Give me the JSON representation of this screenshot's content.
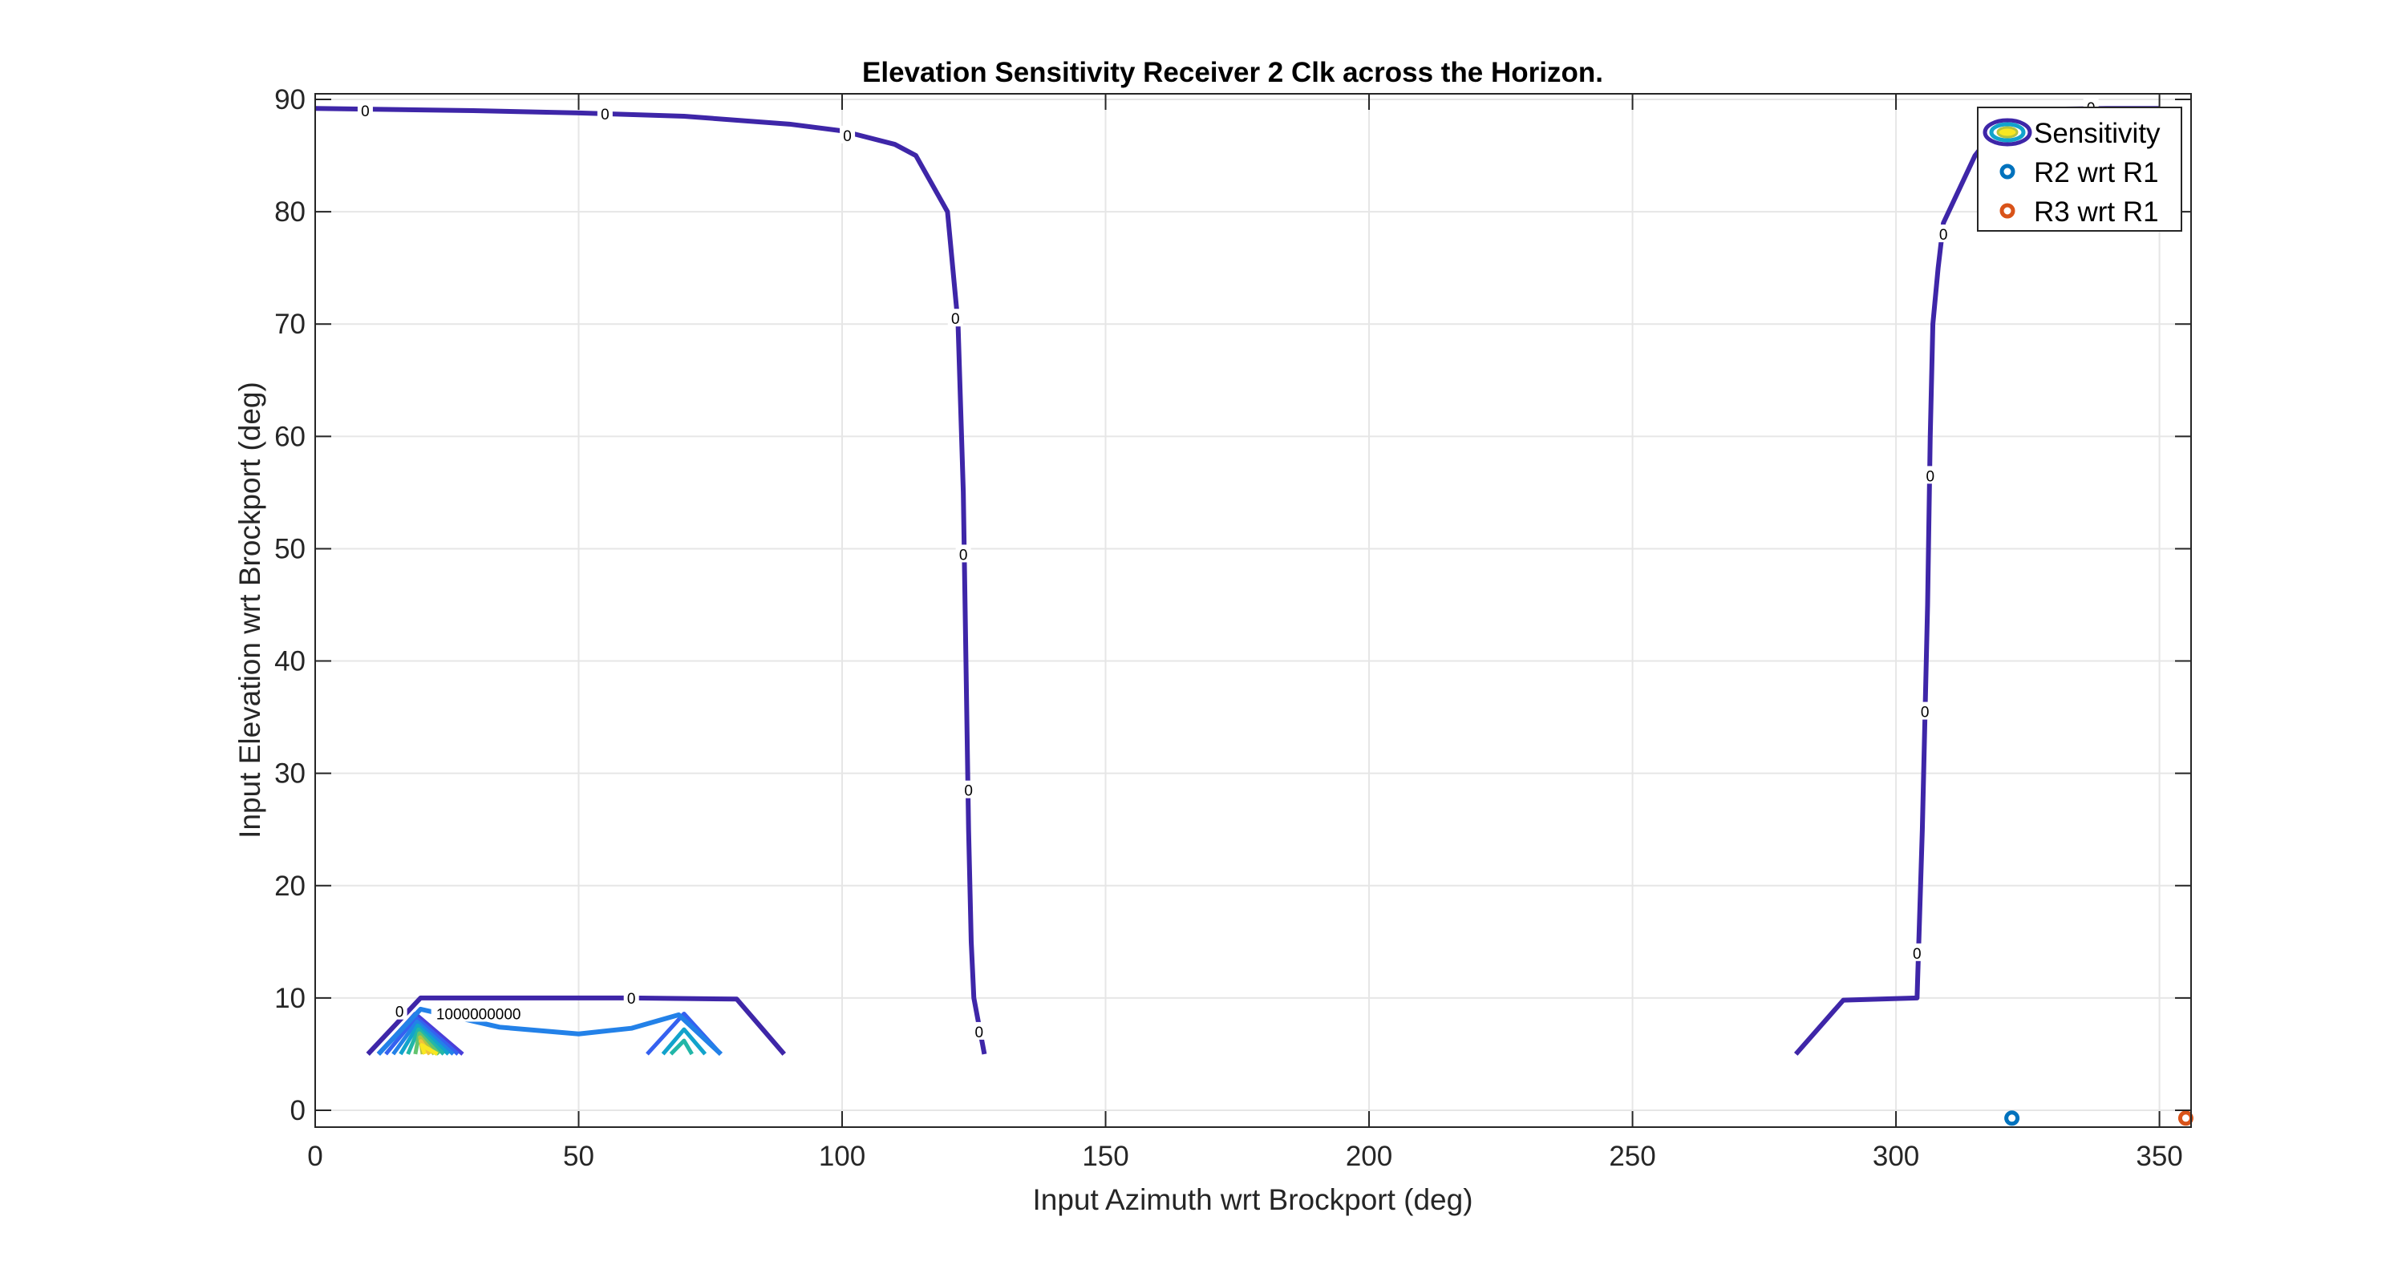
{
  "chart_data": {
    "type": "contour",
    "title": "Elevation Sensitivity Receiver 2 Clk across the Horizon.",
    "xlabel": "Input Azimuth wrt Brockport (deg)",
    "ylabel": "Input Elevation wrt Brockport (deg)",
    "xlim": [
      0,
      356
    ],
    "ylim": [
      -1.5,
      90.5
    ],
    "xticks": [
      "0",
      "50",
      "100",
      "150",
      "200",
      "250",
      "300",
      "350"
    ],
    "yticks": [
      "0",
      "10",
      "20",
      "30",
      "40",
      "50",
      "60",
      "70",
      "80",
      "90"
    ],
    "grid": true,
    "legend_position": "top-right",
    "legend": [
      {
        "label": "Sensitivity",
        "marker": "contour"
      },
      {
        "label": "R2 wrt R1",
        "marker": "circle",
        "color": "#0072BD"
      },
      {
        "label": "R3 wrt R1",
        "marker": "circle",
        "color": "#D95319"
      }
    ],
    "colors": {
      "contour_zero": "#3E26A8",
      "contour_levels": [
        "#4A3FD9",
        "#3561F0",
        "#2381E8",
        "#12A3CC",
        "#22B6A8",
        "#62C46F",
        "#B4C33F",
        "#F0C33A",
        "#F9E721"
      ],
      "r2_marker": "#0072BD",
      "r3_marker": "#D95319",
      "grid": "#e6e6e6",
      "axis": "#262626"
    },
    "contours": [
      {
        "level": "0",
        "points": [
          [
            0,
            89.2
          ],
          [
            30,
            89
          ],
          [
            50,
            88.8
          ],
          [
            70,
            88.5
          ],
          [
            90,
            87.8
          ],
          [
            100,
            87.2
          ],
          [
            110,
            86
          ],
          [
            114,
            85
          ],
          [
            120,
            80
          ],
          [
            121,
            75
          ],
          [
            122,
            70
          ],
          [
            123,
            55
          ],
          [
            123.5,
            40
          ],
          [
            124,
            25
          ],
          [
            124.5,
            15
          ],
          [
            125,
            10
          ],
          [
            126,
            7.5
          ],
          [
            127,
            5
          ]
        ]
      },
      {
        "level": "0",
        "points": [
          [
            281,
            5
          ],
          [
            290,
            9.8
          ],
          [
            304,
            10
          ],
          [
            305,
            25
          ],
          [
            306,
            45
          ],
          [
            306.5,
            60
          ],
          [
            307,
            70
          ],
          [
            308,
            75
          ],
          [
            309,
            79
          ],
          [
            310,
            80
          ],
          [
            315,
            85
          ],
          [
            320,
            88
          ],
          [
            325,
            89.1
          ],
          [
            340,
            89.2
          ],
          [
            350,
            89.2
          ]
        ]
      },
      {
        "level": "0",
        "points": [
          [
            10,
            5
          ],
          [
            20,
            10
          ],
          [
            40,
            10
          ],
          [
            60,
            10
          ],
          [
            80,
            9.9
          ],
          [
            89,
            5
          ]
        ]
      },
      {
        "level": "1000000000",
        "points": [
          [
            12,
            5
          ],
          [
            20,
            9
          ],
          [
            35,
            7.4
          ],
          [
            50,
            6.8
          ],
          [
            60,
            7.3
          ],
          [
            69,
            8.5
          ],
          [
            77,
            5
          ]
        ]
      }
    ],
    "contour_labels": [
      {
        "text": "0",
        "x": 9.5,
        "y": 89
      },
      {
        "text": "0",
        "x": 55,
        "y": 88.7
      },
      {
        "text": "0",
        "x": 101,
        "y": 86.8
      },
      {
        "text": "0",
        "x": 121.5,
        "y": 70.5
      },
      {
        "text": "0",
        "x": 123,
        "y": 49.5
      },
      {
        "text": "0",
        "x": 124,
        "y": 28.5
      },
      {
        "text": "0",
        "x": 126,
        "y": 7
      },
      {
        "text": "0",
        "x": 304,
        "y": 14
      },
      {
        "text": "0",
        "x": 305.5,
        "y": 35.5
      },
      {
        "text": "0",
        "x": 306.5,
        "y": 56.5
      },
      {
        "text": "0",
        "x": 309,
        "y": 78
      },
      {
        "text": "0",
        "x": 337,
        "y": 89.3
      },
      {
        "text": "0",
        "x": 60,
        "y": 10
      },
      {
        "text": "0",
        "x": 16,
        "y": 8.8
      },
      {
        "text": "1000000000",
        "x": 31,
        "y": 8.6
      }
    ],
    "series": [
      {
        "name": "R2 wrt R1",
        "x": [
          322
        ],
        "y": [
          -0.7
        ]
      },
      {
        "name": "R3 wrt R1",
        "x": [
          355
        ],
        "y": [
          -0.7
        ]
      }
    ]
  }
}
